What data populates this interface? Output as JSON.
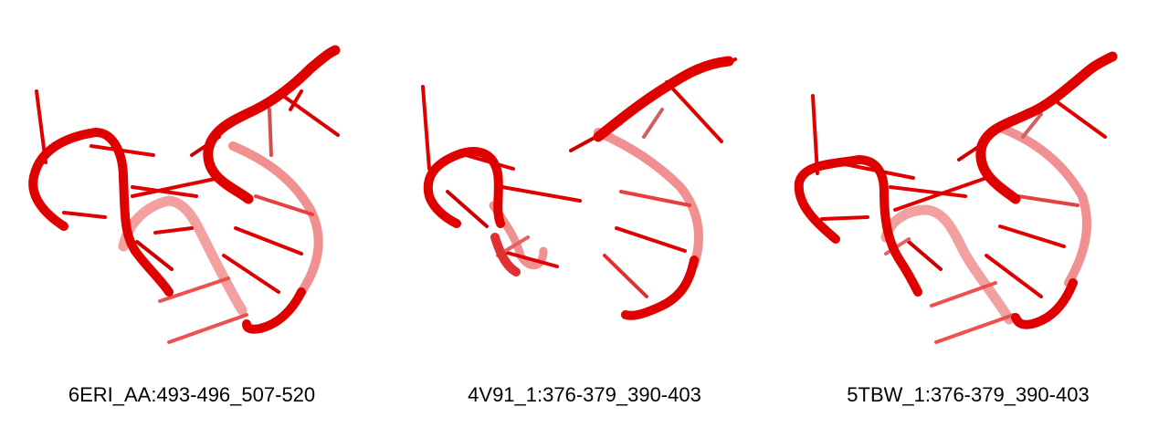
{
  "colors": {
    "background": "#ffffff",
    "structure": "#e00000",
    "structure_light": "#f08080",
    "text": "#000000"
  },
  "panels": [
    {
      "label": "6ERI_AA:493-496_507-520"
    },
    {
      "label": "4V91_1:376-379_390-403"
    },
    {
      "label": "5TBW_1:376-379_390-403"
    }
  ]
}
